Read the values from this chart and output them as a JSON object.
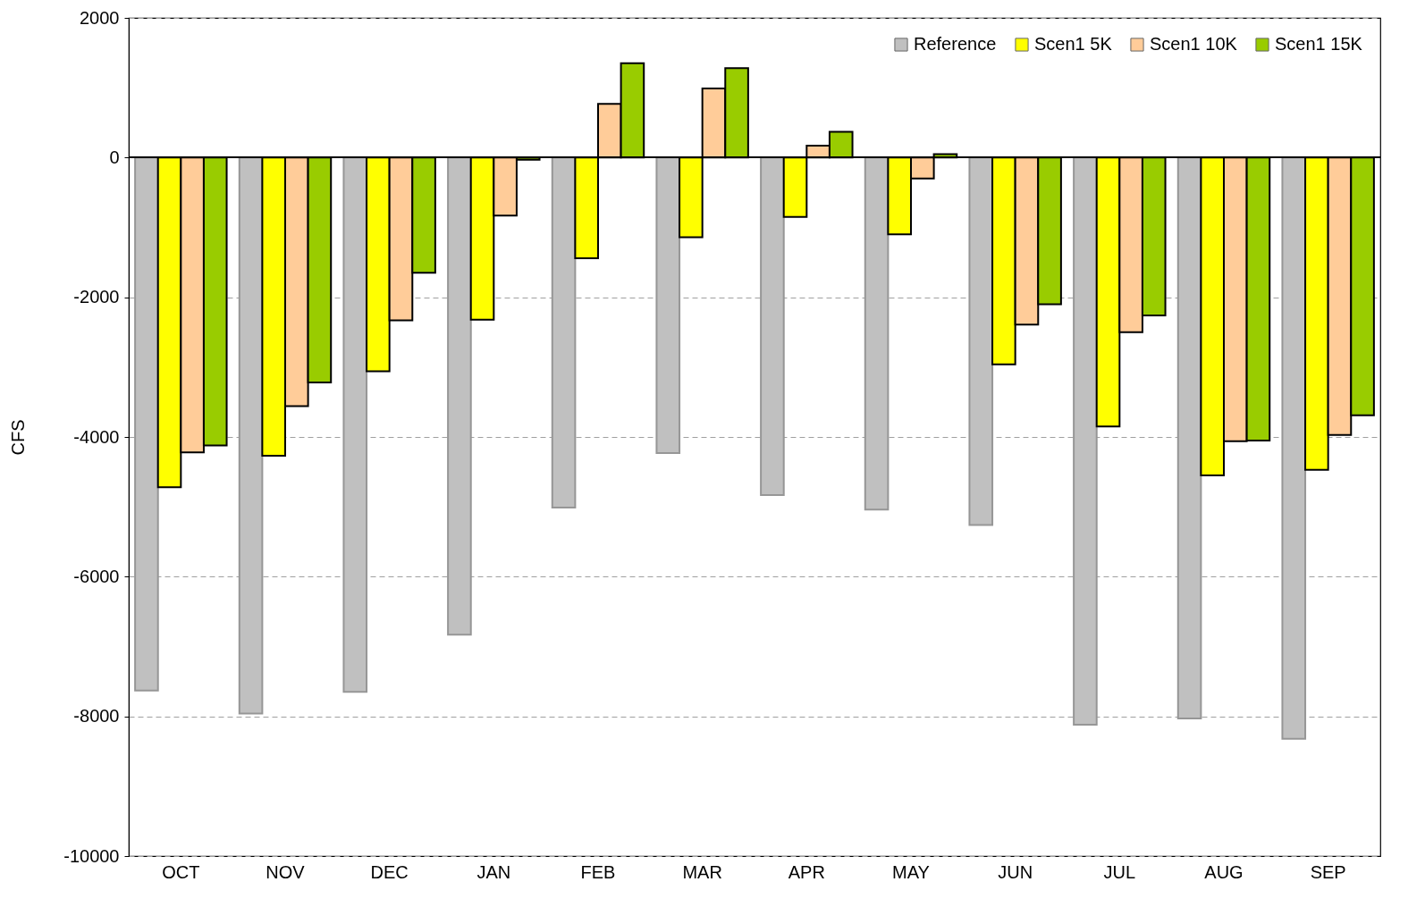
{
  "chart_data": {
    "type": "bar",
    "ylabel": "CFS",
    "categories": [
      "OCT",
      "NOV",
      "DEC",
      "JAN",
      "FEB",
      "MAR",
      "APR",
      "MAY",
      "JUN",
      "JUL",
      "AUG",
      "SEP"
    ],
    "series": [
      {
        "name": "Reference",
        "color": "#c0c0c0",
        "values": [
          -7630,
          -7960,
          -7650,
          -6830,
          -5010,
          -4230,
          -4830,
          -5040,
          -5260,
          -8120,
          -8030,
          -8320
        ]
      },
      {
        "name": "Scen1 5K",
        "color": "#ffff00",
        "values": [
          -4720,
          -4270,
          -3060,
          -2320,
          -1440,
          -1140,
          -850,
          -1100,
          -2960,
          -3850,
          -4550,
          -4470
        ]
      },
      {
        "name": "Scen1 10K",
        "color": "#ffcc99",
        "values": [
          -4220,
          -3560,
          -2330,
          -830,
          770,
          990,
          170,
          -300,
          -2390,
          -2500,
          -4060,
          -3970
        ]
      },
      {
        "name": "Scen1 15K",
        "color": "#99cc00",
        "values": [
          -4120,
          -3220,
          -1650,
          -30,
          1350,
          1280,
          370,
          50,
          -2100,
          -2260,
          -4050,
          -3690
        ]
      }
    ],
    "ylim": [
      -10000,
      2000
    ],
    "yticks": [
      -10000,
      -8000,
      -6000,
      -4000,
      -2000,
      0,
      2000
    ],
    "grid": "y",
    "legend": "top right"
  }
}
